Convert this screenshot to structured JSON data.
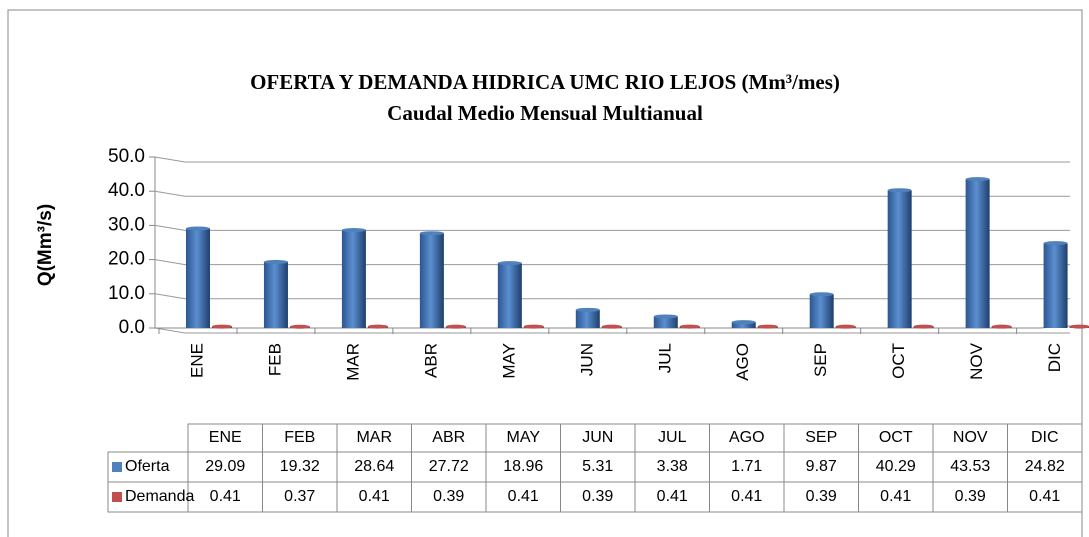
{
  "chart_data": {
    "type": "bar",
    "title": "OFERTA Y DEMANDA HIDRICA UMC RIO LEJOS  (Mm³/mes)",
    "subtitle": "Caudal Medio Mensual Multianual",
    "y_label": "Q(Mm³/s)",
    "categories": [
      "ENE",
      "FEB",
      "MAR",
      "ABR",
      "MAY",
      "JUN",
      "JUL",
      "AGO",
      "SEP",
      "OCT",
      "NOV",
      "DIC"
    ],
    "series": [
      {
        "name": "Oferta",
        "color": "#4f81bd",
        "values": [
          29.09,
          19.32,
          28.64,
          27.72,
          18.96,
          5.31,
          3.38,
          1.71,
          9.87,
          40.29,
          43.53,
          24.82
        ]
      },
      {
        "name": "Demanda",
        "color": "#c0504d",
        "values": [
          0.41,
          0.37,
          0.41,
          0.39,
          0.41,
          0.39,
          0.41,
          0.41,
          0.39,
          0.41,
          0.39,
          0.41
        ]
      }
    ],
    "ylim": [
      0,
      50
    ],
    "yticks": [
      {
        "value": 0,
        "label": "0.0"
      },
      {
        "value": 10,
        "label": "10.0"
      },
      {
        "value": 20,
        "label": "20.0"
      },
      {
        "value": 30,
        "label": "30.0"
      },
      {
        "value": 40,
        "label": "40.0"
      },
      {
        "value": 50,
        "label": "50.0"
      }
    ],
    "grid": true
  }
}
